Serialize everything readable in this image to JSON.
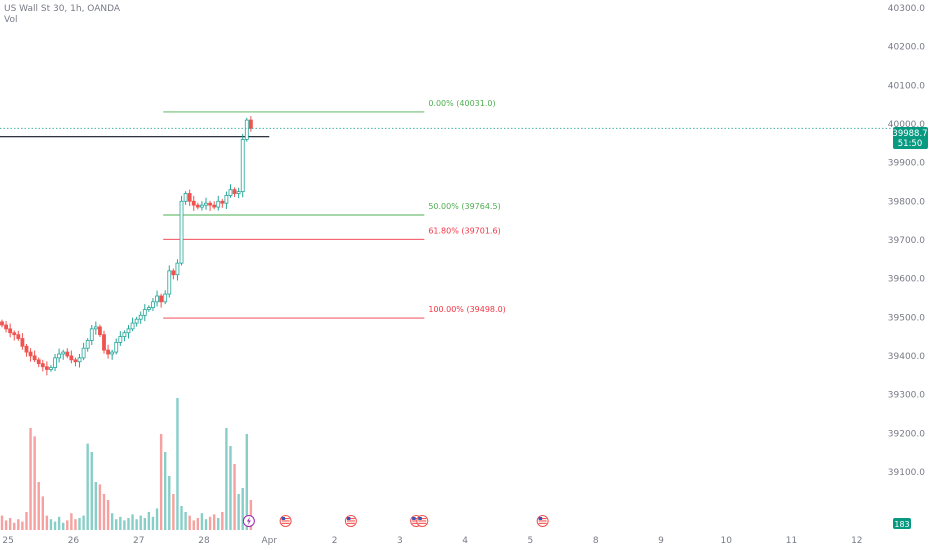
{
  "header": {
    "title": "US Wall St 30, 1h, OANDA",
    "volume_label": "Vol"
  },
  "colors": {
    "up": "#26a69a",
    "down": "#ef5350",
    "fib_green": "#4caf50",
    "fib_red": "#f23645",
    "price_badge": "#089981"
  },
  "price_badge": {
    "price": "39988.7",
    "countdown": "51:50"
  },
  "volume_badge": "183",
  "chart_data": {
    "type": "candlestick",
    "title": "US Wall St 30, 1h, OANDA",
    "y_axis": {
      "range": [
        39030,
        40305
      ],
      "ticks": [
        40300,
        40200,
        40100,
        40000,
        39900,
        39800,
        39700,
        39600,
        39500,
        39400,
        39300,
        39200,
        39100
      ],
      "tick_labels": [
        "40300.0",
        "40200.0",
        "40100.0",
        "40000.0",
        "39900.0",
        "39800.0",
        "39700.0",
        "39600.0",
        "39500.0",
        "39400.0",
        "39300.0",
        "39200.0",
        "39100.0"
      ]
    },
    "x_axis": {
      "labels": [
        "25",
        "26",
        "27",
        "28",
        "Apr",
        "2",
        "3",
        "4",
        "5",
        "8",
        "9",
        "10",
        "11",
        "12"
      ],
      "label_bars": [
        2,
        18,
        34,
        50,
        66,
        82,
        98,
        114,
        130,
        146,
        162,
        178,
        194,
        210
      ]
    },
    "current_price": 39988.7,
    "horizontal_line": 39967,
    "fibonacci": {
      "start_bar": 40,
      "end_bar": 104,
      "levels": [
        {
          "label": "0.00% (40031.0)",
          "value": 40031.0,
          "color": "green"
        },
        {
          "label": "50.00% (39764.5)",
          "value": 39764.5,
          "color": "green"
        },
        {
          "label": "61.80% (39701.6)",
          "value": 39701.6,
          "color": "red"
        },
        {
          "label": "100.00% (39498.0)",
          "value": 39498.0,
          "color": "red"
        }
      ]
    },
    "event_markers": [
      {
        "bar": 61,
        "type": "lightning-icon"
      },
      {
        "bar": 70,
        "type": "us-flag-icon"
      },
      {
        "bar": 86,
        "type": "us-flag-icon"
      },
      {
        "bar": 102,
        "type": "us-flag-icon"
      },
      {
        "bar": 103.5,
        "type": "us-flag-icon"
      },
      {
        "bar": 133,
        "type": "us-flag-icon"
      }
    ],
    "closes": [
      39480,
      39470,
      39460,
      39455,
      39445,
      39425,
      39410,
      39400,
      39390,
      39380,
      39372,
      39365,
      39370,
      39395,
      39405,
      39410,
      39400,
      39390,
      39385,
      39395,
      39420,
      39440,
      39470,
      39475,
      39455,
      39415,
      39405,
      39410,
      39435,
      39450,
      39460,
      39470,
      39485,
      39495,
      39505,
      39520,
      39525,
      39540,
      39555,
      39540,
      39560,
      39620,
      39610,
      39640,
      39800,
      39820,
      39800,
      39790,
      39785,
      39790,
      39795,
      39790,
      39785,
      39800,
      39795,
      39815,
      39830,
      39820,
      39825,
      39960,
      40010,
      39988.7
    ],
    "volumes": [
      12,
      8,
      10,
      6,
      9,
      7,
      15,
      85,
      78,
      40,
      28,
      12,
      9,
      7,
      11,
      6,
      8,
      14,
      9,
      10,
      12,
      72,
      65,
      40,
      38,
      30,
      25,
      14,
      9,
      11,
      8,
      10,
      13,
      9,
      12,
      10,
      15,
      11,
      18,
      80,
      65,
      45,
      30,
      110,
      20,
      15,
      12,
      8,
      10,
      14,
      9,
      11,
      13,
      10,
      15,
      85,
      70,
      55,
      30,
      35,
      80,
      25
    ]
  }
}
